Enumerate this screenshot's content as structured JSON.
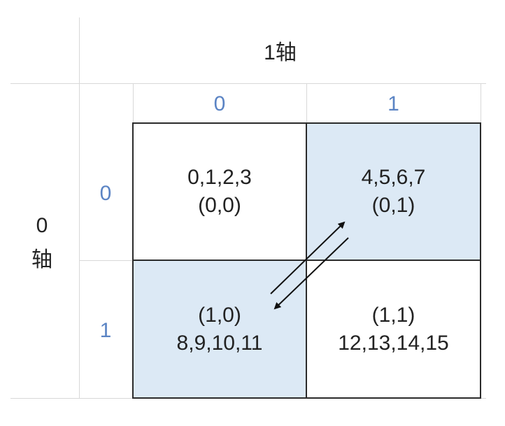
{
  "axis1": {
    "title": "1轴",
    "indices": [
      "0",
      "1"
    ]
  },
  "axis0": {
    "title_line1": "0",
    "title_line2": "轴",
    "indices": [
      "0",
      "1"
    ]
  },
  "cells": {
    "c00": {
      "line1": "0,1,2,3",
      "line2": "(0,0)",
      "fill": "#ffffff"
    },
    "c01": {
      "line1": "4,5,6,7",
      "line2": "(0,1)",
      "fill": "#dce9f5"
    },
    "c10": {
      "line1": "(1,0)",
      "line2": "8,9,10,11",
      "fill": "#dce9f5"
    },
    "c11": {
      "line1": "(1,1)",
      "line2": "12,13,14,15",
      "fill": "#ffffff"
    }
  },
  "colors": {
    "index_label": "#5b84c4",
    "highlight": "#dce9f5",
    "border": "#2b2b2b",
    "sheet_grid": "#d8d8d8"
  }
}
